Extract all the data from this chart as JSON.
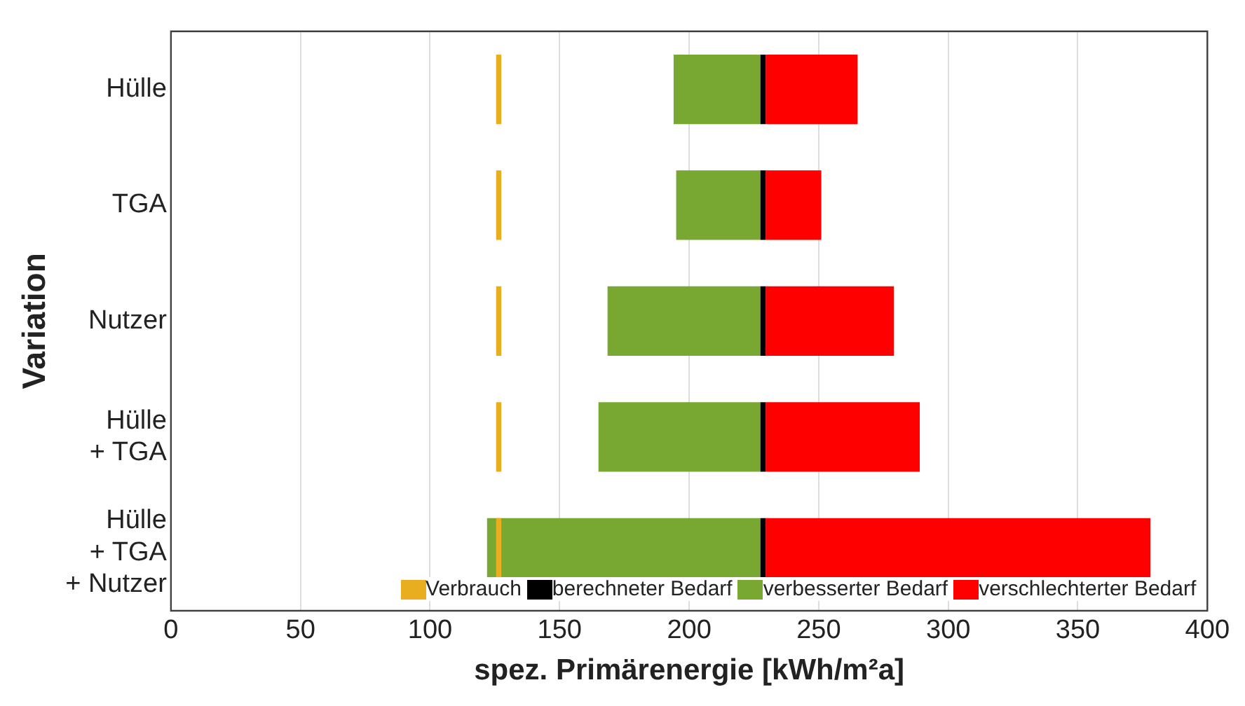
{
  "chart_data": {
    "type": "bar",
    "orientation": "horizontal",
    "xlabel": "spez. Primärenergie [kWh/m²a]",
    "ylabel": "Variation",
    "categories": [
      "Hülle",
      "TGA",
      "Nutzer",
      "Hülle\n+ TGA",
      "Hülle\n+ TGA\n+ Nutzer"
    ],
    "series": [
      {
        "name": "Verbrauch",
        "color": "#e9ae1f",
        "base": [
          125.5,
          125.5,
          125.5,
          125.5,
          125.5
        ],
        "values": [
          2,
          2,
          2,
          2,
          2
        ]
      },
      {
        "name": "berechneter Bedarf",
        "color": "#000000",
        "base": [
          227.5,
          227.5,
          227.5,
          227.5,
          227.5
        ],
        "values": [
          2,
          2,
          2,
          2,
          2
        ]
      },
      {
        "name": "verbesserter Bedarf",
        "color": "#78a832",
        "base": [
          194,
          195,
          168.5,
          165,
          122
        ],
        "values": [
          33.5,
          32.5,
          59,
          62.5,
          105.5
        ]
      },
      {
        "name": "verschlechterter Bedarf",
        "color": "#ff0000",
        "base": [
          229.5,
          229.5,
          229.5,
          229.5,
          229.5
        ],
        "values": [
          35.5,
          21.5,
          49.5,
          59.5,
          148.5
        ]
      }
    ],
    "xlim": [
      0,
      400
    ],
    "xticks": [
      0,
      50,
      100,
      150,
      200,
      250,
      300,
      350,
      400
    ],
    "grid": "x",
    "legend": "bottom right"
  }
}
